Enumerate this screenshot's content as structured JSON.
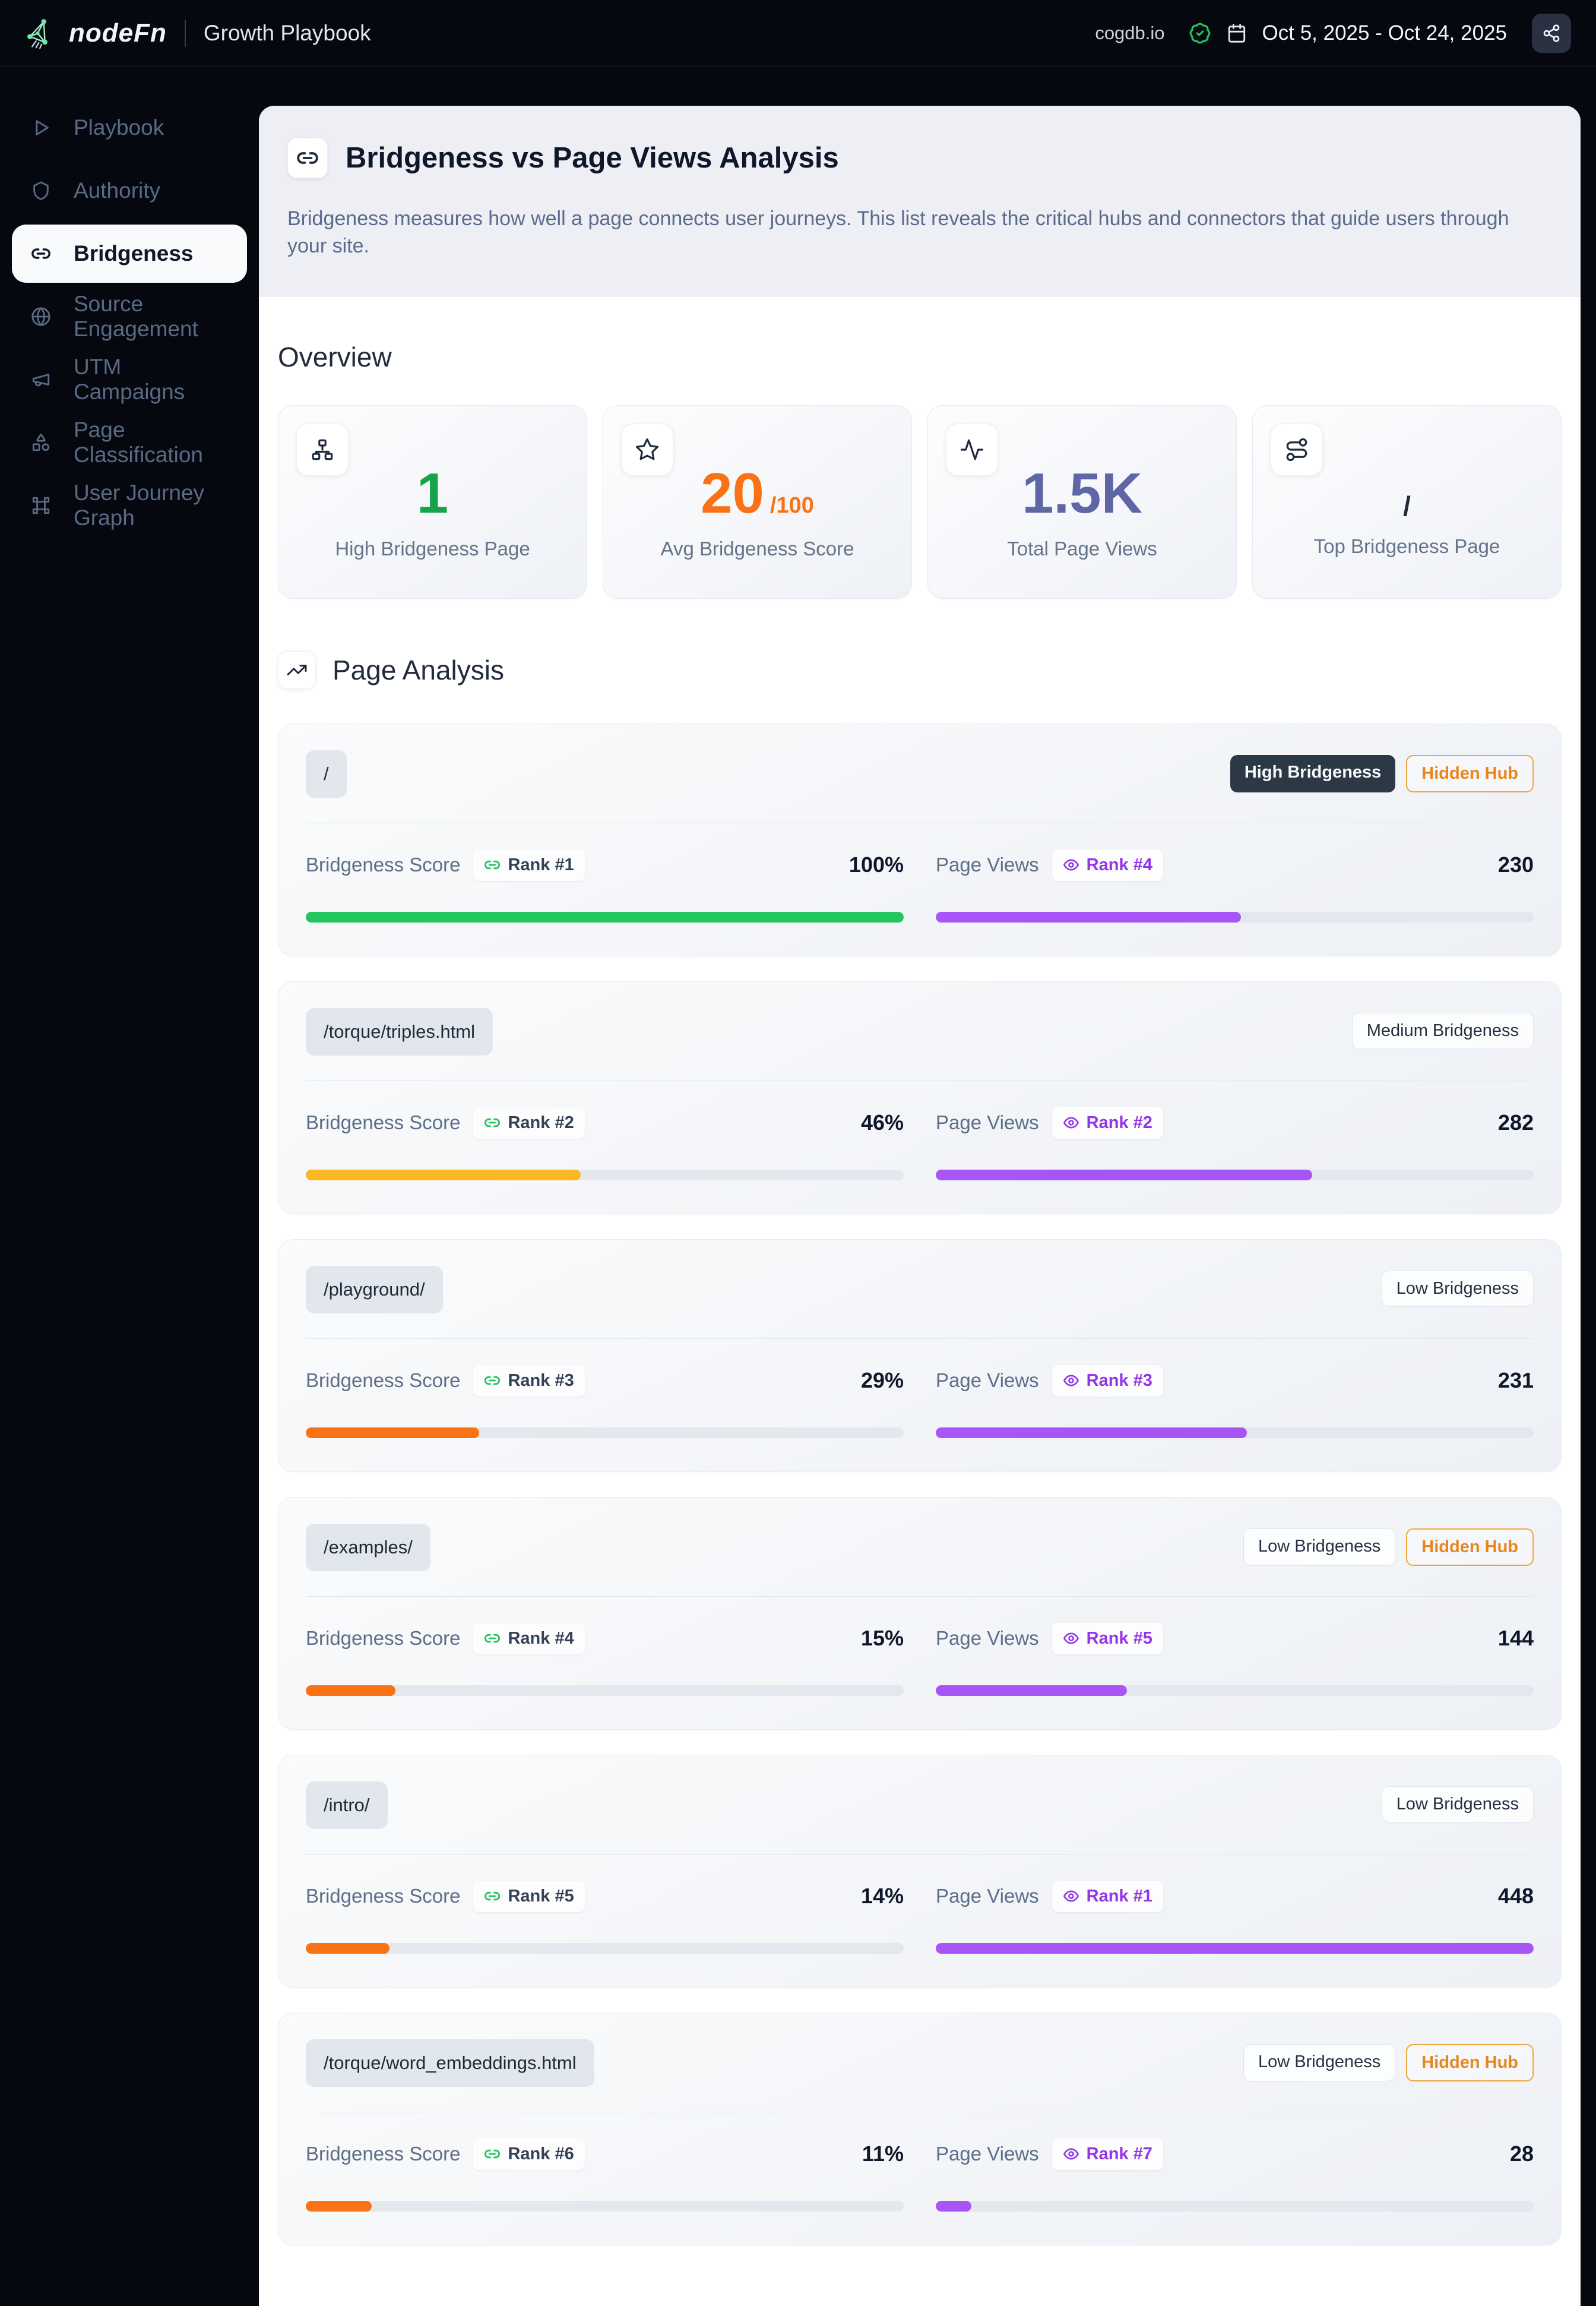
{
  "topbar": {
    "brand": "nodeFn",
    "app_title": "Growth Playbook",
    "site": "cogdb.io",
    "date_range": "Oct 5, 2025 - Oct 24, 2025"
  },
  "sidebar": {
    "items": [
      {
        "label": "Playbook"
      },
      {
        "label": "Authority"
      },
      {
        "label": "Bridgeness",
        "active": true
      },
      {
        "label": "Source Engagement"
      },
      {
        "label": "UTM Campaigns"
      },
      {
        "label": "Page Classification"
      },
      {
        "label": "User Journey Graph"
      }
    ]
  },
  "header": {
    "title": "Bridgeness vs Page Views Analysis",
    "description": "Bridgeness measures how well a page connects user journeys. This list reveals the critical hubs and connectors that guide users through your site."
  },
  "overview": {
    "heading": "Overview",
    "stats": [
      {
        "icon": "sitemap-icon",
        "value": "1",
        "suffix": "",
        "label": "High Bridgeness Page",
        "color": "#16a34a"
      },
      {
        "icon": "star-icon",
        "value": "20",
        "suffix": "/100",
        "label": "Avg Bridgeness Score",
        "color": "#f97316"
      },
      {
        "icon": "activity-icon",
        "value": "1.5K",
        "suffix": "",
        "label": "Total Page Views",
        "color": "#5f66a6"
      },
      {
        "icon": "route-icon",
        "value": "/",
        "suffix": "",
        "label": "Top Bridgeness Page",
        "color": "#1e293b"
      }
    ]
  },
  "analysis": {
    "heading": "Page Analysis",
    "metric_labels": {
      "bridgeness": "Bridgeness Score",
      "views": "Page Views"
    },
    "views_color": "#a855f7",
    "pages": [
      {
        "path": "/",
        "badges": [
          {
            "label": "High Bridgeness",
            "style": "dark"
          },
          {
            "label": "Hidden Hub",
            "style": "hub"
          }
        ],
        "bridgeness_rank": "Rank #1",
        "bridgeness_score": "100%",
        "bridgeness_pct": 100,
        "bridgeness_color": "#22c55e",
        "views_rank": "Rank #4",
        "views": "230",
        "views_pct": 51
      },
      {
        "path": "/torque/triples.html",
        "badges": [
          {
            "label": "Medium Bridgeness",
            "style": "light"
          }
        ],
        "bridgeness_rank": "Rank #2",
        "bridgeness_score": "46%",
        "bridgeness_pct": 46,
        "bridgeness_color": "#fbb724",
        "views_rank": "Rank #2",
        "views": "282",
        "views_pct": 63
      },
      {
        "path": "/playground/",
        "badges": [
          {
            "label": "Low Bridgeness",
            "style": "light"
          }
        ],
        "bridgeness_rank": "Rank #3",
        "bridgeness_score": "29%",
        "bridgeness_pct": 29,
        "bridgeness_color": "#f97316",
        "views_rank": "Rank #3",
        "views": "231",
        "views_pct": 52
      },
      {
        "path": "/examples/",
        "badges": [
          {
            "label": "Low Bridgeness",
            "style": "light"
          },
          {
            "label": "Hidden Hub",
            "style": "hub"
          }
        ],
        "bridgeness_rank": "Rank #4",
        "bridgeness_score": "15%",
        "bridgeness_pct": 15,
        "bridgeness_color": "#f97316",
        "views_rank": "Rank #5",
        "views": "144",
        "views_pct": 32
      },
      {
        "path": "/intro/",
        "badges": [
          {
            "label": "Low Bridgeness",
            "style": "light"
          }
        ],
        "bridgeness_rank": "Rank #5",
        "bridgeness_score": "14%",
        "bridgeness_pct": 14,
        "bridgeness_color": "#f97316",
        "views_rank": "Rank #1",
        "views": "448",
        "views_pct": 100
      },
      {
        "path": "/torque/word_embeddings.html",
        "badges": [
          {
            "label": "Low Bridgeness",
            "style": "light"
          },
          {
            "label": "Hidden Hub",
            "style": "hub"
          }
        ],
        "bridgeness_rank": "Rank #6",
        "bridgeness_score": "11%",
        "bridgeness_pct": 11,
        "bridgeness_color": "#f97316",
        "views_rank": "Rank #7",
        "views": "28",
        "views_pct": 6
      }
    ]
  }
}
